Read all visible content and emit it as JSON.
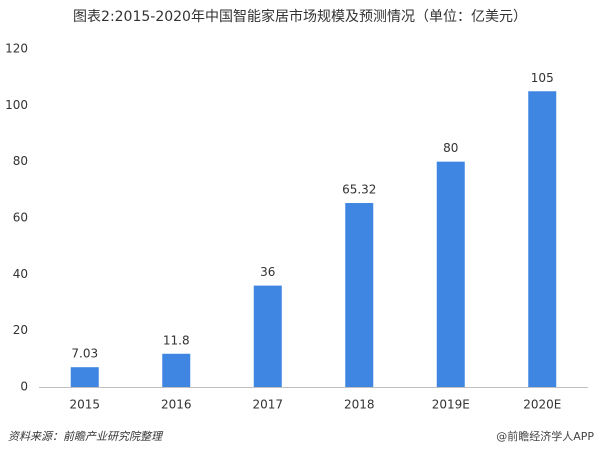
{
  "chart_data": {
    "type": "bar",
    "title": "图表2:2015-2020年中国智能家居市场规模及预测情况（单位：亿美元）",
    "categories": [
      "2015",
      "2016",
      "2017",
      "2018",
      "2019E",
      "2020E"
    ],
    "values": [
      7.03,
      11.8,
      36,
      65.32,
      80,
      105
    ],
    "color": "#3f86e2",
    "ylim": [
      0,
      120
    ],
    "yticks": [
      0,
      20,
      40,
      60,
      80,
      100,
      120
    ],
    "grid": false,
    "source": "资料来源：前瞻产业研究院整理",
    "watermark": "@前瞻经济学人APP"
  }
}
